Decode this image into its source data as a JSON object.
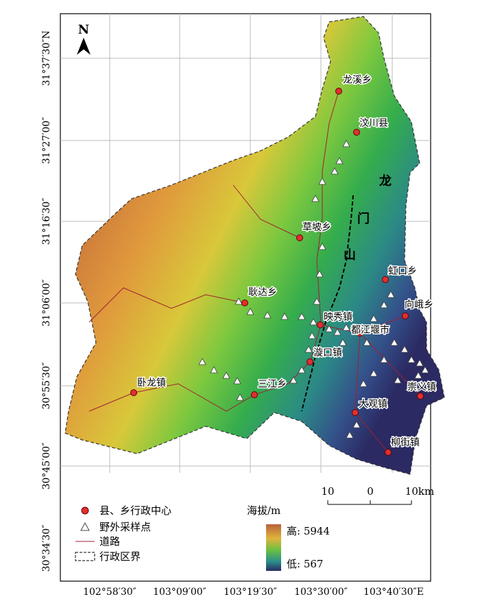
{
  "north": "N",
  "lat_labels": [
    "31°37′30″N",
    "31°27′00″",
    "31°16′30″",
    "31°06′00″",
    "30°55′30″",
    "30°45′00″",
    "30°34′30″"
  ],
  "lon_labels": [
    "102°58′30″",
    "103°09′00″",
    "103°19′30″",
    "103°30′00″",
    "103°40′30″E"
  ],
  "places": [
    "龙溪乡",
    "汶川县",
    "草坡乡",
    "耿达乡",
    "映秀镇",
    "虹口乡",
    "向峨乡",
    "都江堰市",
    "漩口镇",
    "三江乡",
    "卧龙镇",
    "崇义镇",
    "大观镇",
    "柳街镇"
  ],
  "mountain": [
    "龙",
    "门",
    "山"
  ],
  "scale": [
    "10",
    "0",
    "10km"
  ],
  "legend": {
    "items": [
      "县、乡行政中心",
      "野外采样点",
      "道路",
      "行政区界"
    ],
    "elevation_title": "海拔/m",
    "high": "高: 5944",
    "low": "低: 567"
  }
}
